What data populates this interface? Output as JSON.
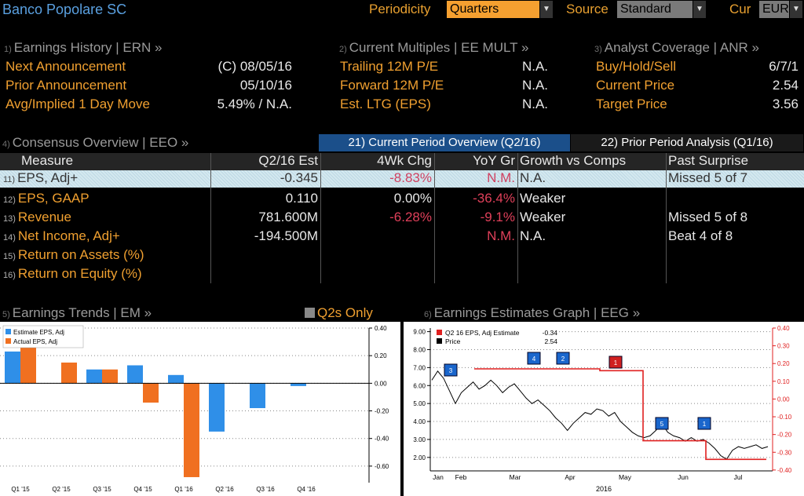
{
  "header": {
    "company": "Banco Popolare SC",
    "periodicity_label": "Periodicity",
    "periodicity_value": "Quarters",
    "source_label": "Source",
    "source_value": "Standard",
    "currency_label": "Cur",
    "currency_value": "EUR"
  },
  "earnings_history": {
    "num": "1)",
    "title": "Earnings History | ERN »",
    "rows": [
      {
        "label": "Next Announcement",
        "value": "(C)  08/05/16"
      },
      {
        "label": "Prior Announcement",
        "value": "05/10/16"
      },
      {
        "label": "Avg/Implied 1 Day Move",
        "value": "5.49% / N.A."
      }
    ]
  },
  "current_multiples": {
    "num": "2)",
    "title": "Current Multiples | EE MULT »",
    "rows": [
      {
        "label": "Trailing 12M P/E",
        "value": "N.A."
      },
      {
        "label": "Forward 12M P/E",
        "value": "N.A."
      },
      {
        "label": "Est. LTG (EPS)",
        "value": "N.A."
      }
    ]
  },
  "analyst_coverage": {
    "num": "3)",
    "title": "Analyst Coverage | ANR »",
    "rows": [
      {
        "label": "Buy/Hold/Sell",
        "value": "6/7/1"
      },
      {
        "label": "Current Price",
        "value": "2.54"
      },
      {
        "label": "Target Price",
        "value": "3.56"
      }
    ]
  },
  "consensus": {
    "num": "4)",
    "title": "Consensus Overview | EEO »",
    "tab_current": "21) Current Period Overview (Q2/16)",
    "tab_prior": "22) Prior Period Analysis (Q1/16)",
    "columns": [
      "Measure",
      "Q2/16 Est",
      "4Wk Chg",
      "YoY Gr",
      "Growth vs Comps",
      "Past Surprise"
    ],
    "rows": [
      {
        "num": "11)",
        "measure": "EPS, Adj+",
        "est": "-0.345",
        "chg": "-8.83%",
        "yoy": "N.M.",
        "comps": "N.A.",
        "surprise": "Missed 5 of 7"
      },
      {
        "num": "12)",
        "measure": "EPS, GAAP",
        "est": "0.110",
        "chg": "0.00%",
        "yoy": "-36.4%",
        "comps": "Weaker",
        "surprise": ""
      },
      {
        "num": "13)",
        "measure": "Revenue",
        "est": "781.600M",
        "chg": "-6.28%",
        "yoy": "-9.1%",
        "comps": "Weaker",
        "surprise": "Missed 5 of 8"
      },
      {
        "num": "14)",
        "measure": "Net Income, Adj+",
        "est": "-194.500M",
        "chg": "",
        "yoy": "N.M.",
        "comps": "N.A.",
        "surprise": "Beat 4 of 8"
      },
      {
        "num": "15)",
        "measure": "Return on Assets (%)",
        "est": "",
        "chg": "",
        "yoy": "",
        "comps": "",
        "surprise": ""
      },
      {
        "num": "16)",
        "measure": "Return on Equity (%)",
        "est": "",
        "chg": "",
        "yoy": "",
        "comps": "",
        "surprise": ""
      }
    ]
  },
  "earnings_trends": {
    "num": "5)",
    "title": "Earnings Trends | EM »",
    "toggle_label": "Q2s Only",
    "legend": [
      "Estimate EPS, Adj",
      "Actual EPS, Adj"
    ],
    "colors": {
      "estimate": "#2f8fe8",
      "actual": "#f07020"
    },
    "chart_data": {
      "type": "bar",
      "categories": [
        "Q1 '15",
        "Q2 '15",
        "Q3 '15",
        "Q4 '15",
        "Q1 '16",
        "Q2 '16",
        "Q3 '16",
        "Q4 '16"
      ],
      "series": [
        {
          "name": "Estimate EPS, Adj",
          "values": [
            0.23,
            null,
            0.1,
            0.13,
            0.06,
            -0.35,
            -0.18,
            -0.02
          ]
        },
        {
          "name": "Actual EPS, Adj",
          "values": [
            0.33,
            0.15,
            0.1,
            -0.14,
            -0.68,
            null,
            null,
            null
          ]
        }
      ],
      "yticks": [
        "0.40",
        "0.20",
        "0.00",
        "-0.20",
        "-0.40",
        "-0.60"
      ],
      "ylim": [
        -0.72,
        0.4
      ]
    }
  },
  "estimates_graph": {
    "num": "6)",
    "title": "Earnings Estimates Graph | EEG »",
    "legend": [
      {
        "label": "Q2 16 EPS, Adj Estimate",
        "value": "-0.34"
      },
      {
        "label": "Price",
        "value": "2.54"
      }
    ],
    "colors": {
      "estimate": "#e02020",
      "price": "#000000"
    },
    "chart_data": {
      "type": "line",
      "left_yticks": [
        "9.00",
        "8.00",
        "7.00",
        "6.00",
        "5.00",
        "4.00",
        "3.00",
        "2.00"
      ],
      "right_yticks": [
        "0.40",
        "0.30",
        "0.20",
        "0.10",
        "0.00",
        "-0.10",
        "-0.20",
        "-0.30",
        "-0.40"
      ],
      "xticks": [
        "Jan",
        "Feb",
        "Mar",
        "Apr",
        "May",
        "Jun",
        "Jul"
      ],
      "year_label": "2016",
      "markers": [
        "3",
        "4",
        "2",
        "1",
        "5",
        "1"
      ]
    }
  }
}
